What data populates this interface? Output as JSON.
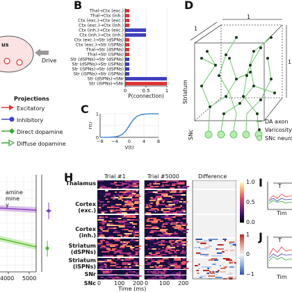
{
  "panels": {
    "a": {
      "region_label": "us",
      "drive_label": "Drive",
      "projections_title": "Projections",
      "legend": [
        {
          "label": "Excitatory",
          "color": "#e03535"
        },
        {
          "label": "Inhibitory",
          "color": "#4040c0"
        },
        {
          "label": "Direct dopamine",
          "color": "#33a833"
        },
        {
          "label": "Diffuse dopamine",
          "color": "#33a833"
        }
      ]
    },
    "b": {
      "letter": "B"
    },
    "c": {
      "letter": "C"
    },
    "d": {
      "letter": "D",
      "edge_labels": [
        "1",
        "1",
        "1"
      ],
      "region_label": "Striatum",
      "snc_label": "SNc",
      "legend": [
        {
          "label": "DA axon",
          "color": "#33a833"
        },
        {
          "label": "Varicosity",
          "color": "#1a3a1a"
        },
        {
          "label": "SNc neuron",
          "color": "#33a833"
        }
      ]
    },
    "g": {
      "legend_fragments": [
        "amine",
        "mine",
        "y"
      ],
      "x_ticks": [
        "4000",
        "5000"
      ]
    },
    "h": {
      "letter": "H",
      "titles": [
        "Trial #1",
        "Trial #5000",
        "Difference"
      ],
      "rows": [
        "Thalamus",
        "Cortex\n(exc.)",
        "Cortex\n(inh.)",
        "Striatum\n(dSPNs)",
        "Striatum\n(iSPNs)",
        "SNr",
        "SNc"
      ],
      "x_ticks": [
        "0",
        "100",
        "200",
        "0",
        "100",
        "200"
      ],
      "xlabel": "Time (ms)",
      "cbar1_ticks": [
        "1.0",
        "0.5",
        "0.0"
      ],
      "cbar2_ticks": [
        "1",
        "0",
        "−1"
      ]
    },
    "i": {
      "letter": "I",
      "fragment": "T",
      "xlabel": "Tim"
    },
    "j": {
      "letter": "J",
      "fragment": "T",
      "xlabel": "Tim"
    }
  },
  "chart_data": [
    {
      "type": "bar",
      "orientation": "horizontal",
      "categories": [
        "Thal→Ctx (exc.)",
        "Thal→Ctx (inh.)",
        "Ctx (exc.)→Ctx (exc.)",
        "Ctx (exc.)→Ctx (inh.)",
        "Ctx (inh.)→Ctx (exc.)",
        "Ctx (inh.)→Ctx (inh.)",
        "Ctx (exc.)→Str (dSPNs)",
        "Ctx (exc.)→Str (iSPNs)",
        "Thal→Str (dSPNs)",
        "Thal→Str (iSPNs)",
        "Str (dSPNs)→Str (dSPNs)",
        "Str (dSPNs)→Str (iSPNs)",
        "Str (iSPNs)→Str (dSPNs)",
        "Str (iSPNs)→Str (iSPNs)",
        "Str (dSPNs)→SNr",
        "Str (iSPNs)→SNr"
      ],
      "values": [
        0.1,
        0.1,
        0.1,
        0.1,
        0.5,
        0.5,
        0.1,
        0.1,
        0.1,
        0.1,
        0.1,
        0.1,
        0.1,
        0.1,
        1.0,
        1.0
      ],
      "bar_colors": [
        "#e03535",
        "#e03535",
        "#e03535",
        "#e03535",
        "#4040c0",
        "#4040c0",
        "#e03535",
        "#e03535",
        "#e03535",
        "#e03535",
        "#4040c0",
        "#4040c0",
        "#4040c0",
        "#4040c0",
        "#4040c0",
        "#e03535"
      ],
      "xlabel": "P(connection)",
      "x_ticks": [
        "0",
        "0.5",
        "1"
      ],
      "xlim": [
        0,
        1
      ]
    },
    {
      "type": "line",
      "x": [
        -8,
        -6,
        -4,
        -3,
        -2,
        -1,
        0,
        1,
        2,
        3,
        4,
        6,
        8
      ],
      "y": [
        0.0,
        0.0,
        0.02,
        0.05,
        0.12,
        0.27,
        0.5,
        0.73,
        0.88,
        0.95,
        0.98,
        1.0,
        1.0
      ],
      "xlabel": "V(t)",
      "ylabel": "r(t)",
      "x_ticks": [
        "−8",
        "−4",
        "0",
        "4",
        "8"
      ],
      "y_ticks": [
        "0",
        "1"
      ],
      "xlim": [
        -8,
        8
      ],
      "ylim": [
        0,
        1
      ],
      "color": "#4a8fd4"
    }
  ]
}
